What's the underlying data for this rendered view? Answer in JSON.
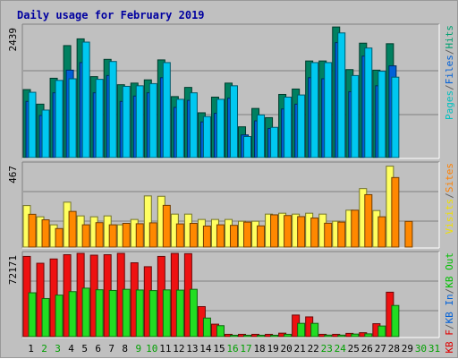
{
  "chart_data": {
    "type": "bar",
    "title": "Daily usage for February 2019",
    "categories": [
      "1",
      "2",
      "3",
      "4",
      "5",
      "6",
      "7",
      "8",
      "9",
      "10",
      "11",
      "12",
      "13",
      "14",
      "15",
      "16",
      "17",
      "18",
      "19",
      "20",
      "21",
      "22",
      "23",
      "24",
      "25",
      "26",
      "27",
      "28",
      "29",
      "30",
      "31"
    ],
    "weekend_days": [
      "2",
      "3",
      "9",
      "10",
      "16",
      "17",
      "23",
      "24",
      "30",
      "31"
    ],
    "panels": [
      {
        "id": "top",
        "ymax_label": "2439",
        "ymax": 2439,
        "legend": [
          {
            "text": "Pages",
            "color": "#00c0c0"
          },
          {
            "text": "/",
            "color": "#606060"
          },
          {
            "text": "Files",
            "color": "#0060d8"
          },
          {
            "text": "/",
            "color": "#606060"
          },
          {
            "text": "Hits",
            "color": "#00a070"
          }
        ],
        "series": [
          {
            "name": "Hits",
            "color": "#008060",
            "values": [
              1260,
              990,
              1470,
              2075,
              2200,
              1500,
              1820,
              1350,
              1380,
              1440,
              1810,
              1130,
              1300,
              830,
              1120,
              1380,
              570,
              910,
              740,
              1170,
              1270,
              1790,
              1790,
              2420,
              1630,
              2120,
              1620,
              2110,
              0,
              0,
              0
            ]
          },
          {
            "name": "Files",
            "color": "#0060d8",
            "values": [
              1040,
              780,
              1200,
              1620,
              1760,
              1200,
              1520,
              1040,
              1140,
              1200,
              1480,
              930,
              1060,
              660,
              820,
              1100,
              420,
              680,
              540,
              900,
              990,
              1480,
              1460,
              2130,
              1220,
              1880,
              1330,
              1700,
              0,
              0,
              0
            ]
          },
          {
            "name": "Pages",
            "color": "#00c8f0",
            "values": [
              1210,
              880,
              1430,
              1460,
              2140,
              1450,
              1780,
              1320,
              1330,
              1370,
              1760,
              1080,
              1200,
              760,
              1080,
              1330,
              390,
              790,
              560,
              1120,
              1160,
              1760,
              1760,
              2310,
              1520,
              2030,
              1600,
              1490,
              0,
              0,
              0
            ]
          }
        ]
      },
      {
        "id": "middle",
        "ymax_label": "467",
        "ymax": 467,
        "legend": [
          {
            "text": "Visits",
            "color": "#f0e000"
          },
          {
            "text": "/",
            "color": "#606060"
          },
          {
            "text": "Sites",
            "color": "#ff8000"
          }
        ],
        "series": [
          {
            "name": "Visits",
            "color": "#ffff60",
            "values": [
              233,
              170,
              125,
              252,
              175,
              170,
              175,
              125,
              155,
              287,
              285,
              185,
              185,
              155,
              155,
              155,
              145,
              145,
              185,
              190,
              185,
              190,
              185,
              145,
              207,
              328,
              205,
              454,
              0,
              0,
              0
            ]
          },
          {
            "name": "Sites",
            "color": "#ff8800",
            "values": [
              184,
              153,
              104,
              200,
              125,
              137,
              125,
              133,
              131,
              136,
              234,
              130,
              133,
              118,
              125,
              122,
              140,
              119,
              181,
              177,
              171,
              163,
              134,
              140,
              207,
              294,
              170,
              390,
              144,
              0,
              0
            ]
          }
        ]
      },
      {
        "id": "bottom",
        "ymax_label": "72171",
        "ymax": 72171,
        "legend": [
          {
            "text": "KB F",
            "color": "#e00000"
          },
          {
            "text": "/",
            "color": "#606060"
          },
          {
            "text": "KB In",
            "color": "#0060d8"
          },
          {
            "text": "/",
            "color": "#606060"
          },
          {
            "text": "KB Out",
            "color": "#00c000"
          }
        ],
        "series": [
          {
            "name": "KB F",
            "color": "#ee1111",
            "values": [
              69500,
              63600,
              67300,
              71000,
              72171,
              70600,
              71000,
              72171,
              64000,
              60600,
              69500,
              72100,
              71900,
              26000,
              10800,
              2000,
              2000,
              2000,
              2000,
              3000,
              18700,
              17100,
              2000,
              2000,
              2800,
              3400,
              11200,
              38500,
              0,
              0,
              0
            ]
          },
          {
            "name": "KB Out",
            "color": "#22dd22",
            "values": [
              38000,
              33000,
              36000,
              39000,
              42000,
              40600,
              40000,
              41000,
              40400,
              39900,
              40500,
              40300,
              41000,
              16100,
              9500,
              1200,
              1200,
              1200,
              1200,
              2000,
              11500,
              11500,
              1300,
              1300,
              2200,
              2400,
              9200,
              27000,
              0,
              0,
              0
            ]
          }
        ]
      }
    ]
  }
}
